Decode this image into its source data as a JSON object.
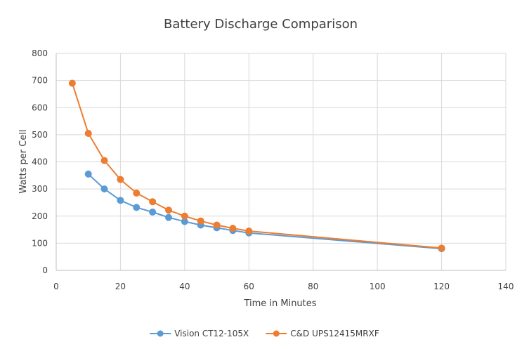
{
  "chart_data": {
    "type": "line",
    "title": "Battery Discharge Comparison",
    "xlabel": "Time in Minutes",
    "ylabel": "Watts per Cell",
    "xlim": [
      0,
      140
    ],
    "ylim": [
      0,
      800
    ],
    "xticks": [
      0,
      20,
      40,
      60,
      80,
      100,
      120,
      140
    ],
    "yticks": [
      0,
      100,
      200,
      300,
      400,
      500,
      600,
      700,
      800
    ],
    "grid": true,
    "legend_position": "bottom",
    "series": [
      {
        "name": "Vision CT12-105X",
        "color": "#5b9bd5",
        "x": [
          10,
          15,
          20,
          25,
          30,
          35,
          40,
          45,
          50,
          55,
          60,
          120
        ],
        "y": [
          355,
          300,
          258,
          232,
          215,
          195,
          180,
          167,
          157,
          147,
          138,
          80
        ]
      },
      {
        "name": "C&D UPS12415MRXF",
        "color": "#ed7d31",
        "x": [
          5,
          10,
          15,
          20,
          25,
          30,
          35,
          40,
          45,
          50,
          55,
          60,
          120
        ],
        "y": [
          690,
          505,
          405,
          335,
          285,
          253,
          222,
          200,
          182,
          167,
          155,
          145,
          82
        ]
      }
    ]
  }
}
